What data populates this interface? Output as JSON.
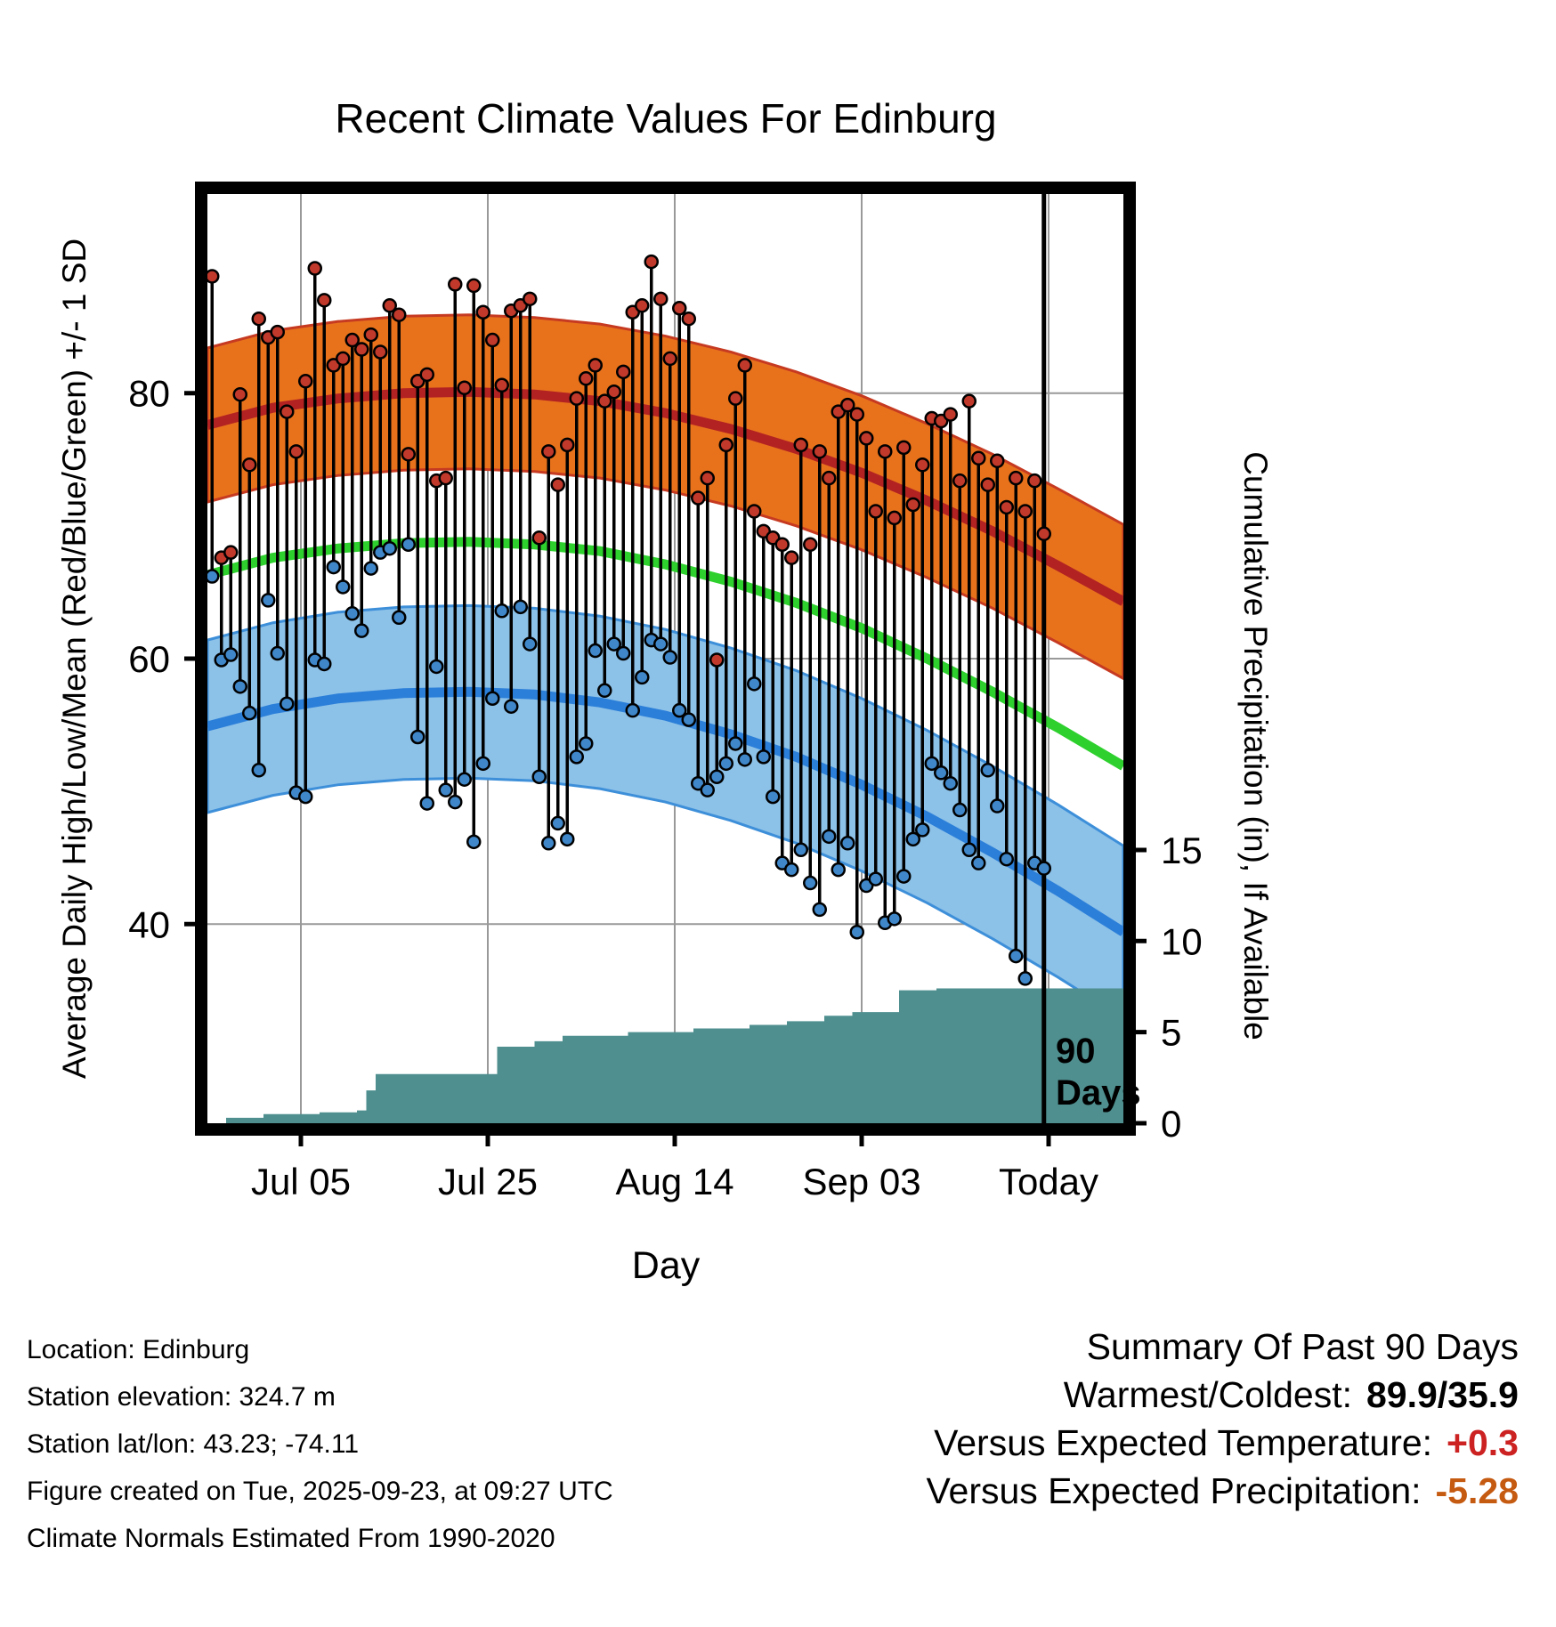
{
  "footer": {
    "location": "Location: Edinburg",
    "elevation": "Station elevation: 324.7 m",
    "latlon": "Station lat/lon: 43.23; -74.11",
    "created": "Figure created on Tue, 2025-09-23, at 09:27 UTC",
    "normals_note": "Climate Normals Estimated From 1990-2020"
  },
  "summary": {
    "heading": "Summary Of Past 90 Days",
    "warmest_coldest_label": "Warmest/Coldest:",
    "warmest_coldest_value": "89.9/35.9",
    "vs_temp_label": "Versus Expected Temperature:",
    "vs_temp_value": "+0.3",
    "vs_precip_label": "Versus Expected Precipitation:",
    "vs_precip_value": "-5.28",
    "temp_value_color": "#cc2222",
    "precip_value_color": "#c55a11"
  },
  "chart_data": {
    "type": "line",
    "title": "Recent Climate Values For Edinburg",
    "xlabel": "Day",
    "ylabel_left": "Average Daily High/Low/Mean (Red/Blue/Green) +/- 1 SD",
    "ylabel_right": "Cumulative Precipitation (in), If Available",
    "xlim": [
      0,
      98
    ],
    "ylim_left": [
      25,
      95
    ],
    "ylim_right": [
      0,
      51
    ],
    "grid": true,
    "x_ticks": [
      {
        "day": 10,
        "label": "Jul 05"
      },
      {
        "day": 30,
        "label": "Jul 25"
      },
      {
        "day": 50,
        "label": "Aug 14"
      },
      {
        "day": 70,
        "label": "Sep 03"
      },
      {
        "day": 90,
        "label": "Today"
      }
    ],
    "y_ticks_left": [
      40,
      60,
      80
    ],
    "y_ticks_right": [
      0,
      5,
      10,
      15
    ],
    "ninety_day_line_day": 89.5,
    "annotation": {
      "line1": "90",
      "line2": "Days"
    },
    "high_sd": 5.8,
    "low_sd": 6.5,
    "normals": {
      "day": [
        0,
        7,
        14,
        21,
        28,
        35,
        42,
        49,
        56,
        63,
        70,
        77,
        84,
        91,
        98
      ],
      "high_mean": [
        77.6,
        78.9,
        79.6,
        80.0,
        80.1,
        79.9,
        79.4,
        78.5,
        77.3,
        75.8,
        74.0,
        71.9,
        69.6,
        67.0,
        64.3
      ],
      "low_mean": [
        54.9,
        56.2,
        57.0,
        57.4,
        57.5,
        57.3,
        56.7,
        55.7,
        54.3,
        52.6,
        50.5,
        48.1,
        45.4,
        42.5,
        39.4
      ],
      "mean": [
        66.3,
        67.6,
        68.3,
        68.7,
        68.8,
        68.6,
        68.1,
        67.1,
        65.8,
        64.2,
        62.3,
        60.0,
        57.5,
        54.8,
        51.9
      ]
    },
    "daily": {
      "high": [
        88.8,
        67.6,
        68.0,
        79.9,
        74.6,
        85.6,
        84.2,
        84.6,
        78.6,
        75.6,
        80.9,
        89.4,
        87.0,
        82.1,
        82.6,
        84.0,
        83.3,
        84.4,
        83.1,
        86.6,
        85.9,
        75.4,
        80.9,
        81.4,
        73.4,
        73.6,
        88.2,
        80.4,
        88.1,
        86.1,
        84.0,
        80.6,
        86.2,
        86.6,
        87.1,
        69.1,
        75.6,
        73.1,
        76.1,
        79.6,
        81.1,
        82.1,
        79.4,
        80.1,
        81.6,
        86.1,
        86.6,
        89.9,
        87.1,
        82.6,
        86.4,
        85.6,
        72.1,
        73.6,
        59.9,
        76.1,
        79.6,
        82.1,
        71.1,
        69.6,
        69.1,
        68.6,
        67.6,
        76.1,
        68.6,
        75.6,
        73.6,
        78.6,
        79.1,
        78.4,
        76.6,
        71.1,
        75.6,
        70.6,
        75.9,
        71.6,
        74.6,
        78.1,
        77.9,
        78.4,
        73.4,
        79.4,
        75.1,
        73.1,
        74.9,
        71.4,
        73.6,
        71.1,
        73.4,
        69.4
      ],
      "low": [
        66.2,
        59.9,
        60.3,
        57.9,
        55.9,
        51.6,
        64.4,
        60.4,
        56.6,
        49.9,
        49.6,
        59.9,
        59.6,
        66.9,
        65.4,
        63.4,
        62.1,
        66.8,
        68.0,
        68.3,
        63.1,
        68.6,
        54.1,
        49.1,
        59.4,
        50.1,
        49.2,
        50.9,
        46.2,
        52.1,
        57.0,
        63.6,
        56.4,
        63.9,
        61.1,
        51.1,
        46.1,
        47.6,
        46.4,
        52.6,
        53.6,
        60.6,
        57.6,
        61.1,
        60.4,
        56.1,
        58.6,
        61.4,
        61.1,
        60.1,
        56.1,
        55.4,
        50.6,
        50.1,
        51.1,
        52.1,
        53.6,
        52.4,
        58.1,
        52.6,
        49.6,
        44.6,
        44.1,
        45.6,
        43.1,
        41.1,
        46.6,
        44.1,
        46.1,
        39.4,
        42.9,
        43.4,
        40.1,
        40.4,
        43.6,
        46.4,
        47.1,
        52.1,
        51.4,
        50.6,
        48.6,
        45.6,
        44.6,
        51.6,
        48.9,
        44.9,
        37.6,
        35.9,
        44.6,
        44.2
      ]
    },
    "precip_cumulative": {
      "points": [
        [
          0,
          0.0
        ],
        [
          2,
          0.3
        ],
        [
          6,
          0.5
        ],
        [
          12,
          0.6
        ],
        [
          16,
          0.7
        ],
        [
          17,
          1.8
        ],
        [
          18,
          2.7
        ],
        [
          31,
          4.2
        ],
        [
          35,
          4.5
        ],
        [
          38,
          4.8
        ],
        [
          45,
          5.0
        ],
        [
          52,
          5.2
        ],
        [
          58,
          5.4
        ],
        [
          62,
          5.6
        ],
        [
          66,
          5.9
        ],
        [
          69,
          6.1
        ],
        [
          74,
          7.3
        ],
        [
          78,
          7.4
        ],
        [
          98,
          7.4
        ]
      ]
    },
    "colors": {
      "grid": "#999999",
      "high_band": "#e8721c",
      "high_band_edge": "#c63a21",
      "high_line": "#b22222",
      "low_band": "#8cc1e8",
      "low_band_edge": "#3d8fd9",
      "low_line": "#2b7fd9",
      "mean_line": "#2ed02e",
      "precip_fill": "#4f8f8f",
      "daily_line": "#000000",
      "high_dot": "#c0392b",
      "low_dot": "#3f87c9"
    }
  }
}
